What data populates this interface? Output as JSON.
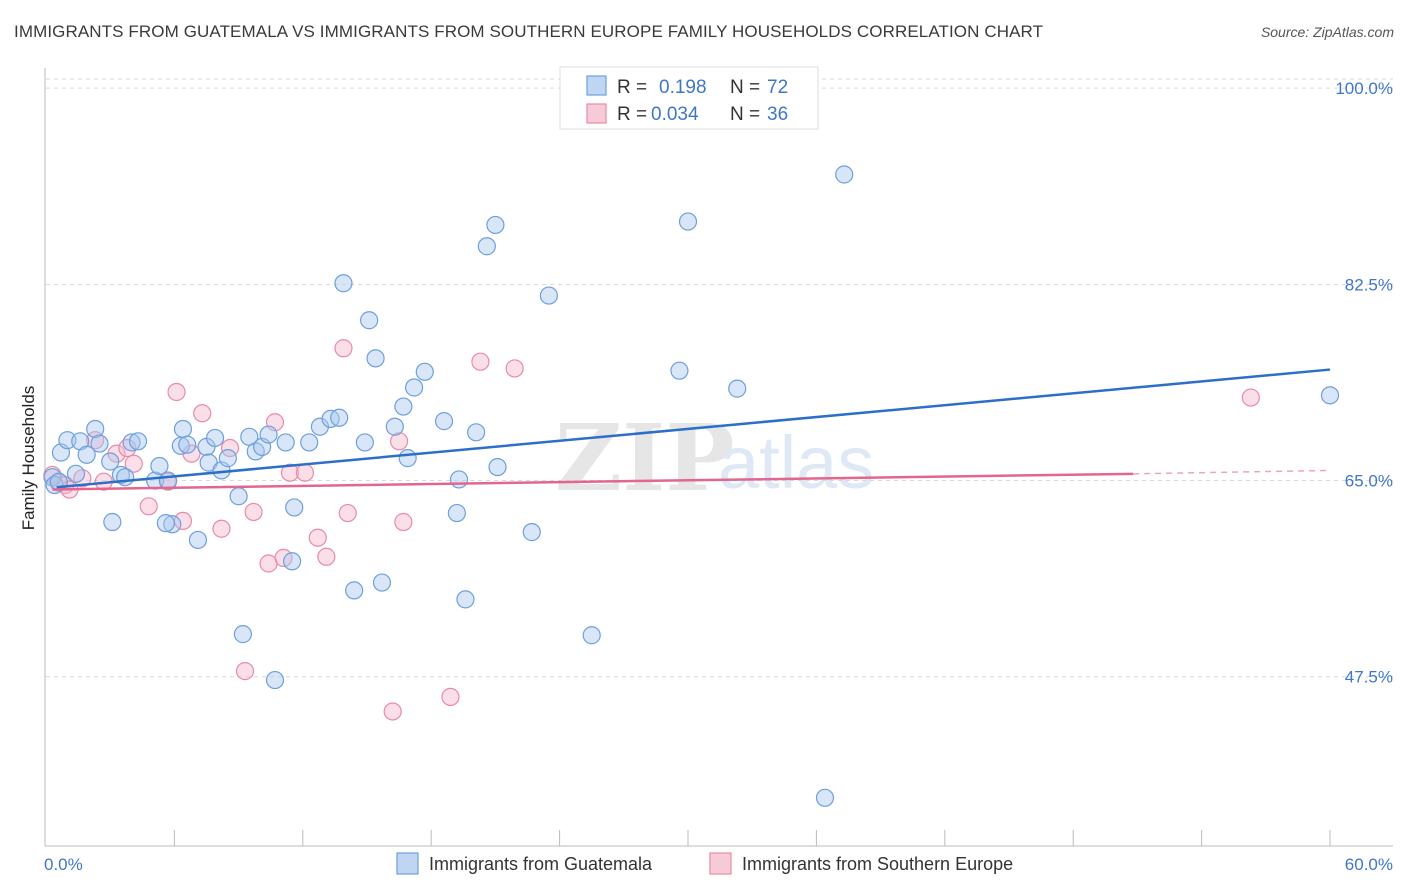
{
  "title": "IMMIGRANTS FROM GUATEMALA VS IMMIGRANTS FROM SOUTHERN EUROPE FAMILY HOUSEHOLDS CORRELATION CHART",
  "source": "Source: ZipAtlas.com",
  "watermark": {
    "zip": "ZIP",
    "atlas": "atlas"
  },
  "colors": {
    "guatemala_fill": "#a9c8ee",
    "guatemala_stroke": "#6d9fde",
    "guatemala_line": "#2c6fcb",
    "europe_fill": "#f4b8cb",
    "europe_stroke": "#e98aa8",
    "europe_line": "#e3668f",
    "tick_text": "#3f76c8",
    "grid": "#d9d9d9"
  },
  "legend_top": {
    "rows": [
      {
        "series": "guatemala",
        "r_label": "R =",
        "r_value": "0.198",
        "n_label": "N =",
        "n_value": "72"
      },
      {
        "series": "europe",
        "r_label": "R =",
        "r_value": "0.034",
        "n_label": "N =",
        "n_value": "36"
      }
    ]
  },
  "chart_data": {
    "type": "scatter",
    "title": "IMMIGRANTS FROM GUATEMALA VS IMMIGRANTS FROM SOUTHERN EUROPE FAMILY HOUSEHOLDS CORRELATION CHART",
    "xlabel": "",
    "ylabel": "Family Households",
    "xlim": [
      0,
      60
    ],
    "ylim": [
      32.4,
      101.8
    ],
    "x_tick_labels": [
      "0.0%",
      "60.0%"
    ],
    "y_ticks": [
      47.5,
      65.0,
      82.5,
      100.0
    ],
    "y_tick_labels": [
      "47.5%",
      "65.0%",
      "82.5%",
      "100.0%"
    ],
    "grid": true,
    "legend": "top-center",
    "series": [
      {
        "name": "Immigrants from Guatemala",
        "key": "guatemala",
        "R": 0.198,
        "N": 72,
        "trend": {
          "x": [
            0.5,
            60
          ],
          "y": [
            64.4,
            74.9
          ]
        },
        "points": [
          [
            0.3,
            65.3
          ],
          [
            0.4,
            64.6
          ],
          [
            0.6,
            64.9
          ],
          [
            0.7,
            67.5
          ],
          [
            1.0,
            68.6
          ],
          [
            1.4,
            65.6
          ],
          [
            1.6,
            68.5
          ],
          [
            1.9,
            67.3
          ],
          [
            2.3,
            69.6
          ],
          [
            2.5,
            68.3
          ],
          [
            3.0,
            66.7
          ],
          [
            3.1,
            61.3
          ],
          [
            3.5,
            65.5
          ],
          [
            3.7,
            65.3
          ],
          [
            4.0,
            68.4
          ],
          [
            4.3,
            68.5
          ],
          [
            5.1,
            65.0
          ],
          [
            5.3,
            66.3
          ],
          [
            5.7,
            65.0
          ],
          [
            5.9,
            61.1
          ],
          [
            6.3,
            68.1
          ],
          [
            6.4,
            69.6
          ],
          [
            6.6,
            68.2
          ],
          [
            7.1,
            59.7
          ],
          [
            7.5,
            68.0
          ],
          [
            7.6,
            66.6
          ],
          [
            7.9,
            68.8
          ],
          [
            8.2,
            65.9
          ],
          [
            8.5,
            67.0
          ],
          [
            9.0,
            63.6
          ],
          [
            9.2,
            51.3
          ],
          [
            9.5,
            68.9
          ],
          [
            9.8,
            67.6
          ],
          [
            10.1,
            68.0
          ],
          [
            10.4,
            69.1
          ],
          [
            10.7,
            47.2
          ],
          [
            11.2,
            68.4
          ],
          [
            11.5,
            57.8
          ],
          [
            11.6,
            62.6
          ],
          [
            12.3,
            68.4
          ],
          [
            12.8,
            69.8
          ],
          [
            13.3,
            70.5
          ],
          [
            13.7,
            70.6
          ],
          [
            13.9,
            82.6
          ],
          [
            14.4,
            55.2
          ],
          [
            14.9,
            68.4
          ],
          [
            15.1,
            79.3
          ],
          [
            15.4,
            75.9
          ],
          [
            15.7,
            55.9
          ],
          [
            16.3,
            69.8
          ],
          [
            16.7,
            71.6
          ],
          [
            16.9,
            67.0
          ],
          [
            17.2,
            73.3
          ],
          [
            17.7,
            74.7
          ],
          [
            18.6,
            70.3
          ],
          [
            19.2,
            62.1
          ],
          [
            19.3,
            65.1
          ],
          [
            19.6,
            54.4
          ],
          [
            20.1,
            69.3
          ],
          [
            20.6,
            85.9
          ],
          [
            21.0,
            87.8
          ],
          [
            21.1,
            66.2
          ],
          [
            22.7,
            60.4
          ],
          [
            23.5,
            81.5
          ],
          [
            25.5,
            51.2
          ],
          [
            29.6,
            74.8
          ],
          [
            30.0,
            88.1
          ],
          [
            32.3,
            73.2
          ],
          [
            37.3,
            92.3
          ],
          [
            60.0,
            72.6
          ],
          [
            36.4,
            36.7
          ],
          [
            5.6,
            61.2
          ]
        ]
      },
      {
        "name": "Immigrants from Southern Europe",
        "key": "europe",
        "R": 0.034,
        "N": 36,
        "trend": {
          "x": [
            0.3,
            50.8
          ],
          "y": [
            64.2,
            65.6
          ],
          "dash_to": [
            60,
            65.9
          ]
        },
        "points": [
          [
            0.3,
            65.5
          ],
          [
            0.6,
            64.8
          ],
          [
            0.9,
            64.6
          ],
          [
            1.1,
            64.2
          ],
          [
            1.7,
            65.2
          ],
          [
            2.3,
            68.6
          ],
          [
            2.7,
            64.9
          ],
          [
            3.3,
            67.4
          ],
          [
            3.8,
            67.9
          ],
          [
            4.1,
            66.5
          ],
          [
            4.8,
            62.7
          ],
          [
            5.7,
            64.9
          ],
          [
            6.1,
            72.9
          ],
          [
            6.4,
            61.4
          ],
          [
            6.8,
            67.4
          ],
          [
            7.3,
            71.0
          ],
          [
            8.2,
            60.7
          ],
          [
            8.6,
            67.9
          ],
          [
            9.3,
            48.0
          ],
          [
            9.7,
            62.2
          ],
          [
            10.4,
            57.6
          ],
          [
            10.7,
            70.2
          ],
          [
            11.1,
            58.1
          ],
          [
            11.4,
            65.7
          ],
          [
            12.1,
            65.7
          ],
          [
            12.7,
            59.9
          ],
          [
            13.1,
            58.2
          ],
          [
            13.9,
            76.8
          ],
          [
            14.1,
            62.1
          ],
          [
            16.2,
            44.4
          ],
          [
            16.7,
            61.3
          ],
          [
            16.5,
            68.5
          ],
          [
            18.9,
            45.7
          ],
          [
            20.3,
            75.6
          ],
          [
            21.9,
            75.0
          ],
          [
            56.3,
            72.4
          ]
        ]
      }
    ]
  },
  "legend_bottom": {
    "items": [
      {
        "series": "guatemala",
        "label": "Immigrants from Guatemala"
      },
      {
        "series": "europe",
        "label": "Immigrants from Southern Europe"
      }
    ]
  }
}
